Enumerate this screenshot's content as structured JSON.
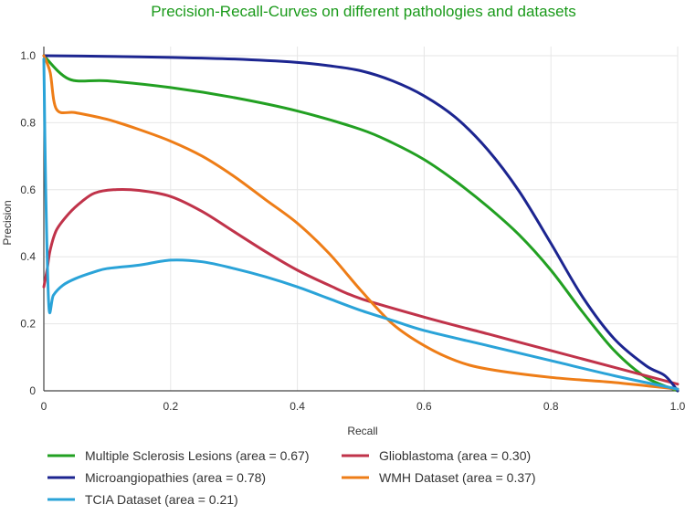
{
  "chart_data": {
    "type": "line",
    "title": "Precision-Recall-Curves on different pathologies and datasets",
    "xlabel": "Recall",
    "ylabel": "Precision",
    "xlim": [
      0,
      1
    ],
    "ylim": [
      0,
      1
    ],
    "xticks": [
      0,
      0.2,
      0.4,
      0.6,
      0.8,
      1.0
    ],
    "xtick_labels": [
      "0",
      "0.2",
      "0.4",
      "0.6",
      "0.8",
      "1.0"
    ],
    "yticks": [
      0,
      0.2,
      0.4,
      0.6,
      0.8,
      1.0
    ],
    "ytick_labels": [
      "0",
      "0.2",
      "0.4",
      "0.6",
      "0.8",
      "1.0"
    ],
    "grid": true,
    "legend_position": "bottom",
    "series": [
      {
        "name": "Multiple Sclerosis Lesions (area = 0.67)",
        "color": "#22a022",
        "x": [
          0,
          0.04,
          0.1,
          0.2,
          0.3,
          0.4,
          0.5,
          0.55,
          0.6,
          0.65,
          0.7,
          0.75,
          0.8,
          0.85,
          0.9,
          0.95,
          1.0
        ],
        "y": [
          1.0,
          0.93,
          0.925,
          0.905,
          0.875,
          0.835,
          0.78,
          0.74,
          0.69,
          0.625,
          0.55,
          0.465,
          0.36,
          0.235,
          0.12,
          0.04,
          0.0
        ]
      },
      {
        "name": "Glioblastoma (area = 0.30)",
        "color": "#c0334a",
        "x": [
          0,
          0.005,
          0.01,
          0.02,
          0.04,
          0.06,
          0.08,
          0.11,
          0.15,
          0.2,
          0.25,
          0.3,
          0.35,
          0.4,
          0.45,
          0.5,
          0.6,
          0.7,
          0.8,
          0.9,
          1.0
        ],
        "y": [
          0.31,
          0.36,
          0.42,
          0.48,
          0.53,
          0.565,
          0.59,
          0.6,
          0.598,
          0.58,
          0.535,
          0.475,
          0.415,
          0.36,
          0.315,
          0.275,
          0.22,
          0.17,
          0.12,
          0.07,
          0.02
        ]
      },
      {
        "name": "Microangiopathies (area = 0.78)",
        "color": "#1c2590",
        "x": [
          0,
          0.1,
          0.2,
          0.3,
          0.4,
          0.45,
          0.5,
          0.55,
          0.6,
          0.65,
          0.7,
          0.75,
          0.8,
          0.85,
          0.9,
          0.95,
          0.98,
          1.0
        ],
        "y": [
          1.0,
          0.998,
          0.995,
          0.99,
          0.98,
          0.97,
          0.955,
          0.925,
          0.88,
          0.815,
          0.72,
          0.595,
          0.44,
          0.28,
          0.155,
          0.075,
          0.045,
          0.0
        ]
      },
      {
        "name": "WMH Dataset (area = 0.37)",
        "color": "#ee7d17",
        "x": [
          0,
          0.01,
          0.02,
          0.05,
          0.1,
          0.15,
          0.2,
          0.25,
          0.3,
          0.35,
          0.4,
          0.45,
          0.5,
          0.55,
          0.6,
          0.65,
          0.7,
          0.8,
          0.9,
          1.0
        ],
        "y": [
          1.0,
          0.95,
          0.84,
          0.83,
          0.81,
          0.78,
          0.745,
          0.7,
          0.64,
          0.57,
          0.5,
          0.41,
          0.3,
          0.2,
          0.135,
          0.09,
          0.065,
          0.04,
          0.025,
          0.005
        ]
      },
      {
        "name": "TCIA Dataset (area = 0.21)",
        "color": "#2aa3d8",
        "x": [
          0,
          0.003,
          0.008,
          0.015,
          0.03,
          0.05,
          0.08,
          0.1,
          0.15,
          0.2,
          0.25,
          0.3,
          0.35,
          0.4,
          0.45,
          0.5,
          0.55,
          0.6,
          0.7,
          0.8,
          0.9,
          1.0
        ],
        "y": [
          0.99,
          0.6,
          0.25,
          0.285,
          0.315,
          0.335,
          0.355,
          0.365,
          0.375,
          0.39,
          0.385,
          0.365,
          0.34,
          0.31,
          0.275,
          0.24,
          0.21,
          0.18,
          0.135,
          0.09,
          0.045,
          0.005
        ]
      }
    ]
  },
  "colors": {
    "title": "#1a9a1a",
    "grid": "#e6e6e6",
    "axis": "#444444"
  }
}
